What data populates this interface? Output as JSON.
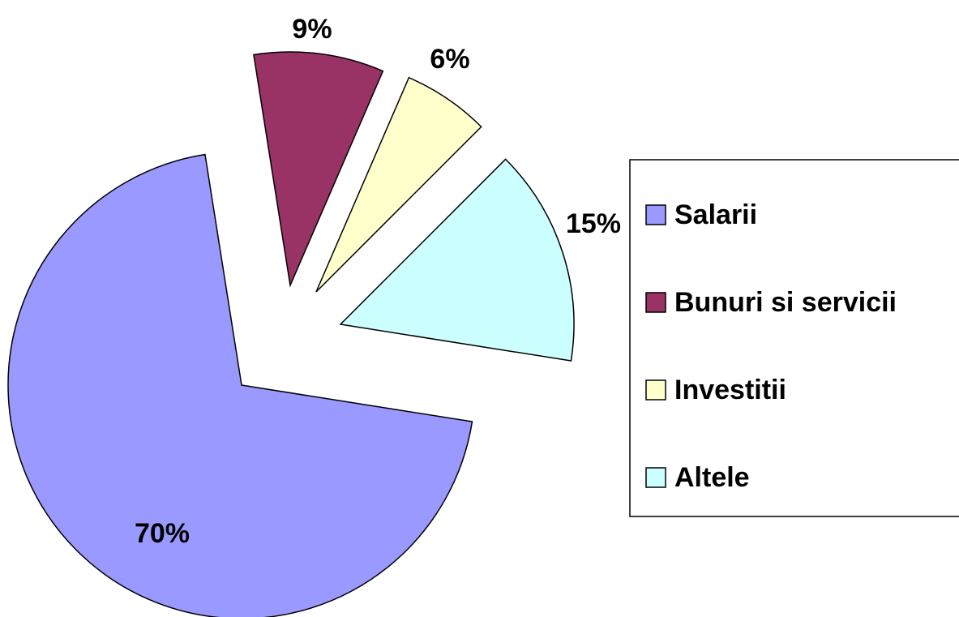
{
  "chart_data": {
    "type": "pie",
    "categories": [
      "Salarii",
      "Bunuri si servicii",
      "Investitii",
      "Altele"
    ],
    "values": [
      70,
      9,
      6,
      15
    ],
    "value_labels": [
      "70%",
      "9%",
      "6%",
      "15%"
    ],
    "colors": [
      "#9999ff",
      "#993366",
      "#ffffcc",
      "#ccffff"
    ],
    "legend": "right"
  }
}
